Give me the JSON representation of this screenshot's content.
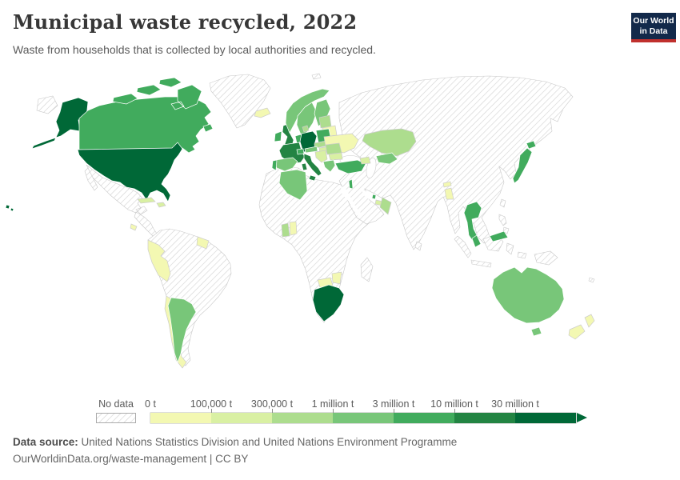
{
  "header": {
    "title": "Municipal waste recycled, 2022",
    "subtitle": "Waste from households that is collected by local authorities and recycled."
  },
  "logo": {
    "line1": "Our World",
    "line2": "in Data",
    "navy": "#12294a",
    "red": "#c0302d"
  },
  "legend": {
    "no_data_label": "No data",
    "tick_labels": [
      "0 t",
      "100,000 t",
      "300,000 t",
      "1 million t",
      "3 million t",
      "10 million t",
      "30 million t"
    ],
    "colors": [
      "#f3f8b2",
      "#d9f0a3",
      "#addd8e",
      "#78c679",
      "#41ab5d",
      "#238443",
      "#006837"
    ],
    "no_data_hatch_color": "#d4d4d4",
    "no_data_border": "#c8c8c8"
  },
  "footer": {
    "source_label": "Data source:",
    "source_text": " United Nations Statistics Division and United Nations Environment Programme",
    "citation": "OurWorldinData.org/waste-management | CC BY"
  },
  "chart_data": {
    "type": "heatmap",
    "subtype": "choropleth-world-map",
    "title": "Municipal waste recycled, 2022",
    "unit": "tonnes",
    "legend_position": "bottom",
    "bins": [
      "0 t",
      "100,000 t",
      "300,000 t",
      "1 million t",
      "3 million t",
      "10 million t",
      "30 million t"
    ],
    "bin_colors": [
      "#f3f8b2",
      "#d9f0a3",
      "#addd8e",
      "#78c679",
      "#41ab5d",
      "#238443",
      "#006837"
    ],
    "regions_by_bin": {
      "30 million t and more": [
        "United States",
        "Germany",
        "South Africa"
      ],
      "10-30 million t": [
        "France",
        "United Kingdom",
        "Italy"
      ],
      "3-10 million t": [
        "Canada",
        "Japan",
        "Turkey",
        "Thailand",
        "Malaysia",
        "Poland",
        "Ireland",
        "Portugal",
        "Switzerland",
        "Netherlands",
        "Belgium",
        "Israel",
        "Qatar"
      ],
      "1-3 million t": [
        "Australia",
        "Spain",
        "Argentina",
        "Algeria",
        "Norway",
        "Sweden",
        "Finland",
        "Austria",
        "Greece",
        "Uzbekistan"
      ],
      "300,000-1 million t": [
        "Kazakhstan",
        "Oman",
        "Ghana",
        "Czechia",
        "Slovakia",
        "Romania",
        "Baltic states",
        "Denmark"
      ],
      "100,000-300,000 t": [
        "Cuba",
        "Hungary",
        "Bulgaria",
        "Serbia/Croatia",
        "Caucasus",
        "United Arab Emirates",
        "Hispaniola"
      ],
      "0-100,000 t": [
        "Peru",
        "Chile",
        "New Zealand",
        "Iceland",
        "Ukraine",
        "Belarus",
        "Costa Rica",
        "Guyana/Suriname",
        "Botswana",
        "Zimbabwe",
        "Bangladesh",
        "Bhutan",
        "Togo/Benin"
      ],
      "No data": [
        "Russia",
        "China",
        "India",
        "Brazil",
        "Mexico",
        "Greenland",
        "Most of Africa",
        "Saudi Arabia",
        "Iran",
        "Indonesia",
        "Papua New Guinea",
        "Philippines",
        "Madagascar",
        "Sri Lanka",
        "Taiwan",
        "Korea",
        "Vietnam",
        "Myanmar"
      ]
    }
  },
  "map": {
    "no_data_border": "#c8c8c8",
    "countries": {
      "chukotka": "no_data",
      "greenland": "no_data",
      "mexico": "no_data",
      "central-america": "no_data",
      "south-america": "no_data",
      "africa": "no_data",
      "madagascar": "no_data",
      "eurasia": "no_data",
      "indonesia": "no_data",
      "papua-new-guinea": "no_data",
      "philippines": "no_data",
      "sri-lanka": "no_data",
      "taiwan": "no_data",
      "svalbard": "no_data",
      "fiji": "no_data",
      "alaska": 6,
      "hawaii": 6,
      "usa": 6,
      "germany": 6,
      "south-africa": 6,
      "france": 5,
      "uk": 5,
      "italy": 5,
      "sicily": 5,
      "sardinia": 5,
      "canada": 4,
      "arctic-islands": 4,
      "newfoundland": 4,
      "ireland": 4,
      "portugal": 4,
      "benelux": 4,
      "switzerland": 4,
      "poland": 4,
      "turkey": 4,
      "israel": 4,
      "qatar": 4,
      "japan": 4,
      "thailand": 4,
      "malaysia": 4,
      "norway": 3,
      "sweden": 3,
      "finland": 3,
      "spain": 3,
      "austria": 3,
      "greece": 3,
      "argentina": 3,
      "algeria": 3,
      "australia": 3,
      "tasmania": 3,
      "uzbekistan": 3,
      "denmark": 2,
      "czech-slovakia": 2,
      "baltics": 2,
      "romania": 2,
      "kazakhstan": 2,
      "oman": 2,
      "ghana": 2,
      "cuba": 1,
      "hispaniola": 1,
      "hungary": 1,
      "bulgaria": 1,
      "balkans": 1,
      "caucasus": 1,
      "uae": 1,
      "iceland": 0,
      "ukraine": 0,
      "belarus": 0,
      "peru": 0,
      "chile": 0,
      "costa-rica": 0,
      "guyana-suriname": 0,
      "botswana": 0,
      "zimbabwe": 0,
      "bangladesh": 0,
      "bhutan": 0,
      "togo-benin": 0,
      "new-zealand": 0
    }
  }
}
